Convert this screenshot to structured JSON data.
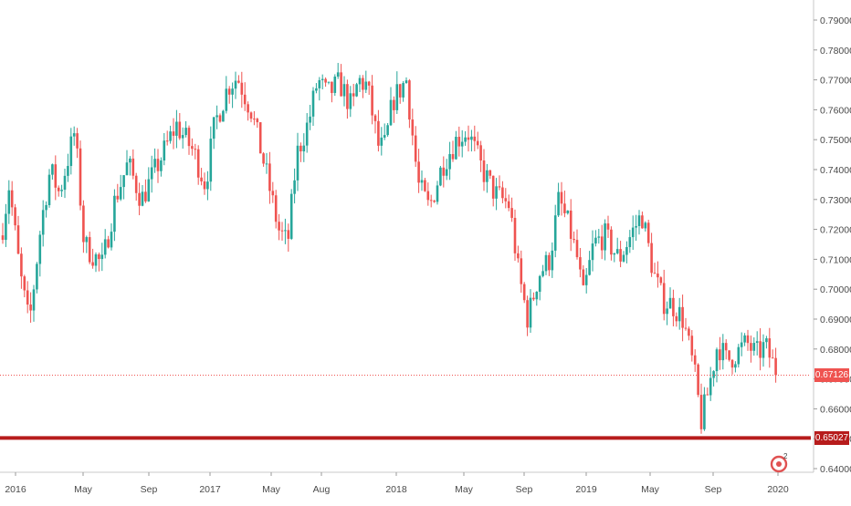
{
  "chart_data": {
    "type": "candlestick",
    "ylim": [
      0.635,
      0.795
    ],
    "y_ticks": [
      "0.64000",
      "0.65000",
      "0.66000",
      "0.67000",
      "0.68000",
      "0.69000",
      "0.70000",
      "0.71000",
      "0.72000",
      "0.73000",
      "0.74000",
      "0.75000",
      "0.76000",
      "0.77000",
      "0.78000",
      "0.79000"
    ],
    "x_ticks": [
      "2016",
      "May",
      "Sep",
      "2017",
      "May",
      "Aug",
      "2018",
      "May",
      "Sep",
      "2019",
      "May",
      "Sep",
      "2020"
    ],
    "colors": {
      "up": "#26a69a",
      "down": "#ef5350",
      "support": "#b71c1c",
      "price_line": "#ef5350"
    },
    "current_price": {
      "value": 0.67126,
      "label": "0.67126"
    },
    "support_level": {
      "value": 0.65027,
      "label": "0.65027"
    },
    "close_path": [
      [
        0.715,
        0
      ],
      [
        0.735,
        10
      ],
      [
        0.705,
        22
      ],
      [
        0.688,
        32
      ],
      [
        0.722,
        45
      ],
      [
        0.74,
        55
      ],
      [
        0.732,
        65
      ],
      [
        0.753,
        82
      ],
      [
        0.715,
        92
      ],
      [
        0.708,
        112
      ],
      [
        0.73,
        126
      ],
      [
        0.742,
        140
      ],
      [
        0.73,
        155
      ],
      [
        0.745,
        178
      ],
      [
        0.755,
        193
      ],
      [
        0.746,
        212
      ],
      [
        0.735,
        225
      ],
      [
        0.755,
        235
      ],
      [
        0.768,
        250
      ],
      [
        0.771,
        260
      ],
      [
        0.76,
        275
      ],
      [
        0.741,
        290
      ],
      [
        0.72,
        305
      ],
      [
        0.715,
        315
      ],
      [
        0.745,
        325
      ],
      [
        0.756,
        338
      ],
      [
        0.77,
        348
      ],
      [
        0.765,
        358
      ],
      [
        0.769,
        372
      ],
      [
        0.76,
        386
      ],
      [
        0.77,
        392
      ],
      [
        0.768,
        402
      ],
      [
        0.747,
        415
      ],
      [
        0.748,
        422
      ],
      [
        0.763,
        430
      ],
      [
        0.77,
        445
      ],
      [
        0.735,
        458
      ],
      [
        0.727,
        470
      ],
      [
        0.742,
        485
      ],
      [
        0.75,
        500
      ],
      [
        0.753,
        512
      ],
      [
        0.74,
        528
      ],
      [
        0.732,
        542
      ],
      [
        0.728,
        558
      ],
      [
        0.705,
        568
      ],
      [
        0.69,
        578
      ],
      [
        0.705,
        590
      ],
      [
        0.71,
        602
      ],
      [
        0.73,
        612
      ],
      [
        0.72,
        624
      ],
      [
        0.708,
        634
      ],
      [
        0.696,
        638
      ],
      [
        0.715,
        650
      ],
      [
        0.718,
        662
      ],
      [
        0.71,
        678
      ],
      [
        0.72,
        694
      ],
      [
        0.725,
        703
      ],
      [
        0.705,
        716
      ],
      [
        0.696,
        726
      ],
      [
        0.695,
        736
      ],
      [
        0.69,
        748
      ],
      [
        0.673,
        760
      ],
      [
        0.656,
        768
      ],
      [
        0.665,
        775
      ],
      [
        0.682,
        786
      ],
      [
        0.676,
        796
      ],
      [
        0.679,
        808
      ],
      [
        0.682,
        818
      ],
      [
        0.678,
        828
      ],
      [
        0.681,
        838
      ],
      [
        0.674,
        848
      ],
      [
        0.6712,
        851
      ]
    ]
  }
}
